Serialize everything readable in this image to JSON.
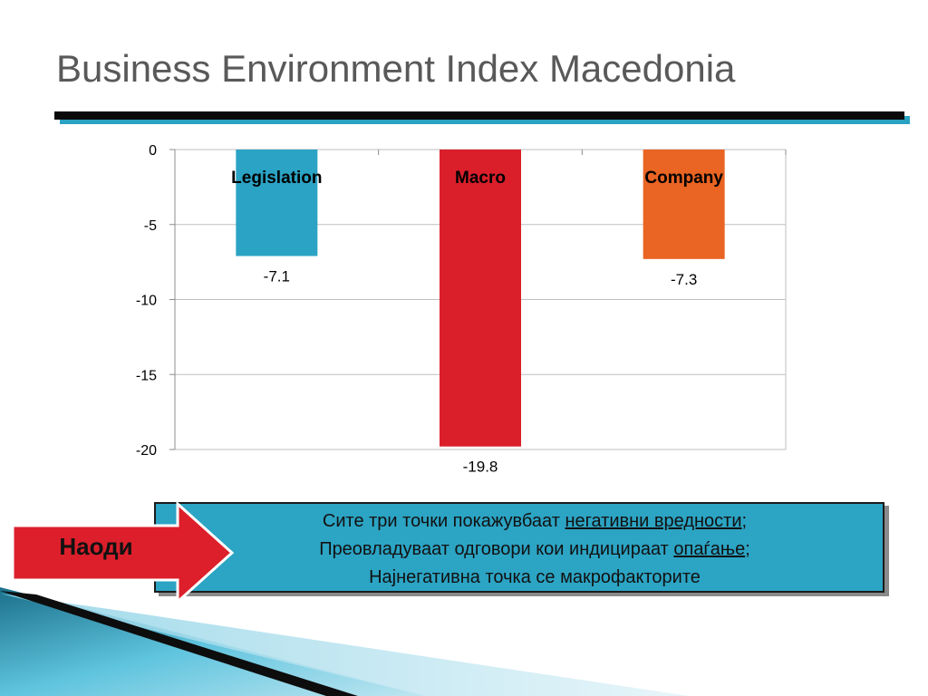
{
  "slide": {
    "title": "Business Environment Index Macedonia"
  },
  "chart_data": {
    "type": "bar",
    "categories": [
      "Legislation",
      "Macro",
      "Company"
    ],
    "values": [
      -7.1,
      -19.8,
      -7.3
    ],
    "data_labels": [
      "-7.1",
      "-19.8",
      "-7.3"
    ],
    "colors": [
      "#2ba3c4",
      "#da1f2b",
      "#ea6423"
    ],
    "ylim": [
      -20,
      0
    ],
    "yticks": [
      0,
      -5,
      -10,
      -15,
      -20
    ],
    "grid": true,
    "title": "",
    "xlabel": "",
    "ylabel": ""
  },
  "findings": {
    "arrow_label": "Наоди",
    "line1_pre": "Сите три точки покажувбаат ",
    "line1_ul": "негативни вредности",
    "line1_post": ";",
    "line2_pre": "Преовладуваат одговори кои индицираат ",
    "line2_ul": "опаѓање",
    "line2_post": ";",
    "line3": "Најнегативна точка се макрофакторите",
    "box_color": "#2ca4c4",
    "arrow_color": "#dc1f2b"
  }
}
